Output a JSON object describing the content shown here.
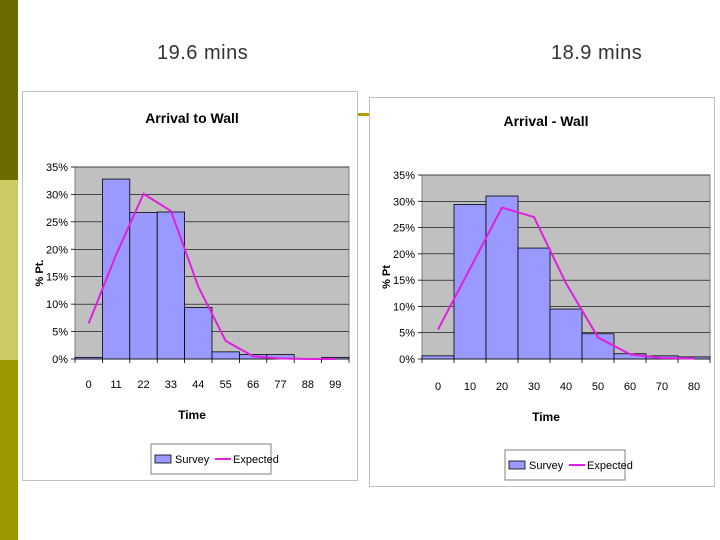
{
  "slide": {
    "left_heading": "19.6 mins",
    "right_heading": "18.9 mins"
  },
  "colors": {
    "sidebar_top": "#6b6b00",
    "sidebar_mid": "#cccc66",
    "sidebar_bottom": "#999900",
    "plot_bg": "#c0c0c0",
    "bar_fill": "#9999ff",
    "line": "#e020e0",
    "accent_rule": "#b3a000"
  },
  "chart_data": [
    {
      "type": "bar",
      "title": "Arrival to Wall",
      "xlabel": "Time",
      "ylabel": "% Pt.",
      "ylim": [
        0,
        35
      ],
      "yticks": [
        "0%",
        "5%",
        "10%",
        "15%",
        "20%",
        "25%",
        "30%",
        "35%"
      ],
      "categories": [
        "0",
        "11",
        "22",
        "33",
        "44",
        "55",
        "66",
        "77",
        "88",
        "99"
      ],
      "grid": true,
      "legend_position": "bottom",
      "series": [
        {
          "name": "Survey",
          "kind": "bar",
          "values": [
            0.3,
            32.8,
            26.7,
            26.8,
            9.4,
            1.3,
            0.8,
            0.8,
            0.1,
            0.3
          ]
        },
        {
          "name": "Expected",
          "kind": "line",
          "values": [
            6.5,
            19,
            30.1,
            27,
            13.2,
            3.3,
            0.5,
            0.1,
            0,
            0
          ]
        }
      ]
    },
    {
      "type": "bar",
      "title": "Arrival - Wall",
      "xlabel": "Time",
      "ylabel": "% Pt",
      "ylim": [
        0,
        35
      ],
      "yticks": [
        "0%",
        "5%",
        "10%",
        "15%",
        "20%",
        "25%",
        "30%",
        "35%"
      ],
      "categories": [
        "0",
        "10",
        "20",
        "30",
        "40",
        "50",
        "60",
        "70",
        "80"
      ],
      "grid": true,
      "legend_position": "bottom",
      "series": [
        {
          "name": "Survey",
          "kind": "bar",
          "values": [
            0.6,
            29.4,
            31,
            21.1,
            9.5,
            4.8,
            1,
            0.6,
            0.4
          ]
        },
        {
          "name": "Expected",
          "kind": "line",
          "values": [
            5.6,
            17.2,
            28.8,
            27,
            14.4,
            4.1,
            0.9,
            0.2,
            0.1
          ]
        }
      ]
    }
  ]
}
